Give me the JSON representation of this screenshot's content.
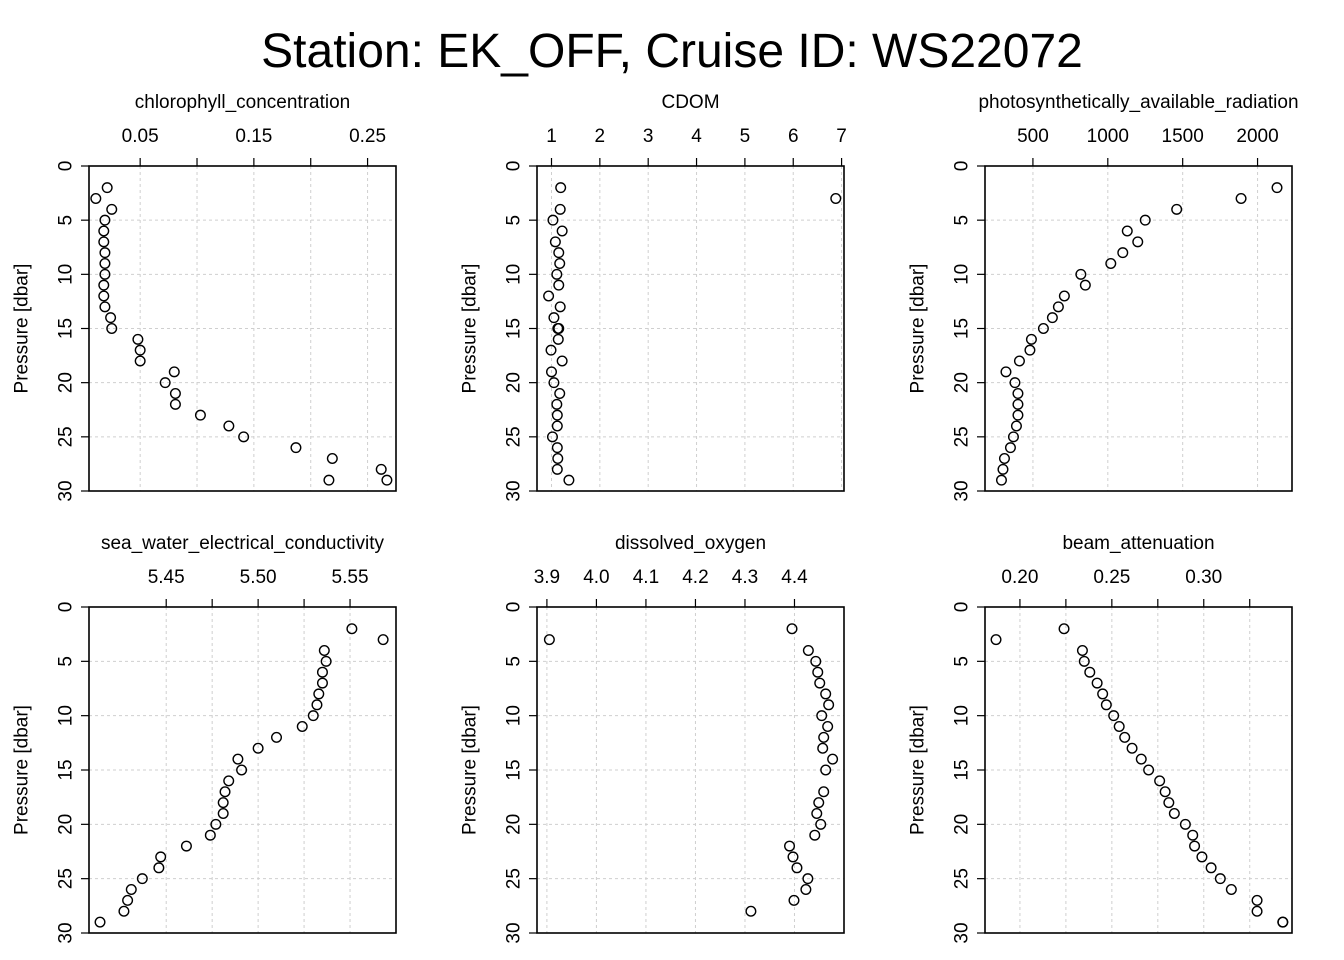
{
  "title": "Station: EK_OFF, Cruise ID: WS22072",
  "chart_data": [
    {
      "type": "scatter",
      "title": "chlorophyll_concentration",
      "xlabel": "",
      "ylabel": "Pressure [dbar]",
      "xlim": [
        0.005,
        0.275
      ],
      "ylim": [
        30,
        0
      ],
      "xticks": [
        0.05,
        0.1,
        0.15,
        0.2,
        0.25
      ],
      "xtick_labels": [
        "0.05",
        "",
        "0.15",
        "",
        "0.25"
      ],
      "yticks": [
        0,
        5,
        10,
        15,
        20,
        25,
        30
      ],
      "ytick_labels": [
        "0",
        "5",
        "10",
        "15",
        "20",
        "25",
        "30"
      ],
      "grid": true,
      "x": [
        0.021,
        0.011,
        0.025,
        0.019,
        0.018,
        0.018,
        0.019,
        0.019,
        0.019,
        0.018,
        0.018,
        0.019,
        0.024,
        0.025,
        0.048,
        0.05,
        0.05,
        0.08,
        0.072,
        0.081,
        0.081,
        0.103,
        0.128,
        0.141,
        0.187,
        0.219,
        0.262,
        0.267,
        0.216
      ],
      "y": [
        2,
        3,
        4,
        5,
        6,
        7,
        8,
        9,
        10,
        11,
        12,
        13,
        14,
        15,
        16,
        17,
        18,
        19,
        20,
        21,
        22,
        23,
        24,
        25,
        26,
        27,
        28,
        29,
        29
      ]
    },
    {
      "type": "scatter",
      "title": "CDOM",
      "xlabel": "",
      "ylabel": "Pressure [dbar]",
      "xlim": [
        0.7,
        7.05
      ],
      "ylim": [
        30,
        0
      ],
      "xticks": [
        1,
        2,
        3,
        4,
        5,
        6,
        7
      ],
      "xtick_labels": [
        "1",
        "2",
        "3",
        "4",
        "5",
        "6",
        "7"
      ],
      "yticks": [
        0,
        5,
        10,
        15,
        20,
        25,
        30
      ],
      "ytick_labels": [
        "0",
        "5",
        "10",
        "15",
        "20",
        "25",
        "30"
      ],
      "grid": true,
      "x": [
        1.19,
        6.88,
        1.18,
        1.03,
        1.22,
        1.08,
        1.15,
        1.17,
        1.11,
        1.15,
        0.94,
        1.18,
        1.05,
        1.13,
        1.14,
        0.99,
        1.22,
        1.0,
        1.05,
        1.17,
        1.11,
        1.12,
        1.12,
        1.02,
        1.12,
        1.13,
        1.12,
        1.36,
        1.15
      ],
      "y": [
        2,
        3,
        4,
        5,
        6,
        7,
        8,
        9,
        10,
        11,
        12,
        13,
        14,
        15,
        16,
        17,
        18,
        19,
        20,
        21,
        22,
        23,
        24,
        25,
        26,
        27,
        28,
        29,
        15
      ]
    },
    {
      "type": "scatter",
      "title": "photosynthetically_available_radiation",
      "xlabel": "",
      "ylabel": "Pressure [dbar]",
      "xlim": [
        180,
        2230
      ],
      "ylim": [
        30,
        0
      ],
      "xticks": [
        500,
        1000,
        1500,
        2000
      ],
      "xtick_labels": [
        "500",
        "1000",
        "1500",
        "2000"
      ],
      "yticks": [
        0,
        5,
        10,
        15,
        20,
        25,
        30
      ],
      "ytick_labels": [
        "0",
        "5",
        "10",
        "15",
        "20",
        "25",
        "30"
      ],
      "grid": true,
      "x": [
        2130,
        1890,
        1460,
        1250,
        1130,
        1200,
        1100,
        1020,
        820,
        850,
        710,
        670,
        630,
        570,
        490,
        480,
        410,
        320,
        380,
        400,
        400,
        400,
        390,
        370,
        350,
        310,
        300,
        290
      ],
      "y": [
        2,
        3,
        4,
        5,
        6,
        7,
        8,
        9,
        10,
        11,
        12,
        13,
        14,
        15,
        16,
        17,
        18,
        19,
        20,
        21,
        22,
        23,
        24,
        25,
        26,
        27,
        28,
        29
      ]
    },
    {
      "type": "scatter",
      "title": "sea_water_electrical_conductivity",
      "xlabel": "",
      "ylabel": "Pressure [dbar]",
      "xlim": [
        5.408,
        5.575
      ],
      "ylim": [
        30,
        0
      ],
      "xticks": [
        5.45,
        5.475,
        5.5,
        5.525,
        5.55
      ],
      "xtick_labels": [
        "5.45",
        "",
        "5.50",
        "",
        "5.55"
      ],
      "yticks": [
        0,
        5,
        10,
        15,
        20,
        25,
        30
      ],
      "ytick_labels": [
        "0",
        "5",
        "10",
        "15",
        "20",
        "25",
        "30"
      ],
      "grid": true,
      "x": [
        5.551,
        5.568,
        5.536,
        5.537,
        5.535,
        5.535,
        5.533,
        5.532,
        5.53,
        5.524,
        5.51,
        5.5,
        5.489,
        5.491,
        5.484,
        5.482,
        5.481,
        5.481,
        5.477,
        5.474,
        5.461,
        5.447,
        5.446,
        5.437,
        5.431,
        5.429,
        5.427,
        5.414
      ],
      "y": [
        2,
        3,
        4,
        5,
        6,
        7,
        8,
        9,
        10,
        11,
        12,
        13,
        14,
        15,
        16,
        17,
        18,
        19,
        20,
        21,
        22,
        23,
        24,
        25,
        26,
        27,
        28,
        29
      ]
    },
    {
      "type": "scatter",
      "title": "dissolved_oxygen",
      "xlabel": "",
      "ylabel": "Pressure [dbar]",
      "xlim": [
        3.88,
        4.5
      ],
      "ylim": [
        30,
        0
      ],
      "xticks": [
        3.9,
        4.0,
        4.1,
        4.2,
        4.3,
        4.4
      ],
      "xtick_labels": [
        "3.9",
        "4.0",
        "4.1",
        "4.2",
        "4.3",
        "4.4"
      ],
      "yticks": [
        0,
        5,
        10,
        15,
        20,
        25,
        30
      ],
      "ytick_labels": [
        "0",
        "5",
        "10",
        "15",
        "20",
        "25",
        "30"
      ],
      "grid": true,
      "x": [
        4.395,
        3.905,
        4.428,
        4.443,
        4.447,
        4.451,
        4.463,
        4.469,
        4.455,
        4.467,
        4.459,
        4.457,
        4.477,
        4.463,
        4.459,
        4.449,
        4.445,
        4.453,
        4.441,
        4.39,
        4.397,
        4.405,
        4.427,
        4.423,
        4.399,
        4.312
      ],
      "y": [
        2,
        3,
        4,
        5,
        6,
        7,
        8,
        9,
        10,
        11,
        12,
        13,
        14,
        15,
        17,
        18,
        19,
        20,
        21,
        22,
        23,
        24,
        25,
        26,
        27,
        28
      ]
    },
    {
      "type": "scatter",
      "title": "beam_attenuation",
      "xlabel": "",
      "ylabel": "Pressure [dbar]",
      "xlim": [
        0.181,
        0.348
      ],
      "ylim": [
        30,
        0
      ],
      "xticks": [
        0.2,
        0.225,
        0.25,
        0.275,
        0.3,
        0.325
      ],
      "xtick_labels": [
        "0.20",
        "",
        "0.25",
        "",
        "0.30",
        ""
      ],
      "yticks": [
        0,
        5,
        10,
        15,
        20,
        25,
        30
      ],
      "ytick_labels": [
        "0",
        "5",
        "10",
        "15",
        "20",
        "25",
        "30"
      ],
      "grid": true,
      "x": [
        0.224,
        0.187,
        0.234,
        0.235,
        0.238,
        0.242,
        0.245,
        0.247,
        0.251,
        0.254,
        0.257,
        0.261,
        0.266,
        0.27,
        0.276,
        0.279,
        0.281,
        0.284,
        0.29,
        0.294,
        0.295,
        0.299,
        0.304,
        0.309,
        0.315,
        0.329,
        0.329,
        0.343,
        0.343
      ],
      "y": [
        2,
        3,
        4,
        5,
        6,
        7,
        8,
        9,
        10,
        11,
        12,
        13,
        14,
        15,
        16,
        17,
        18,
        19,
        20,
        21,
        22,
        23,
        24,
        25,
        26,
        27,
        28,
        29,
        29
      ]
    }
  ]
}
